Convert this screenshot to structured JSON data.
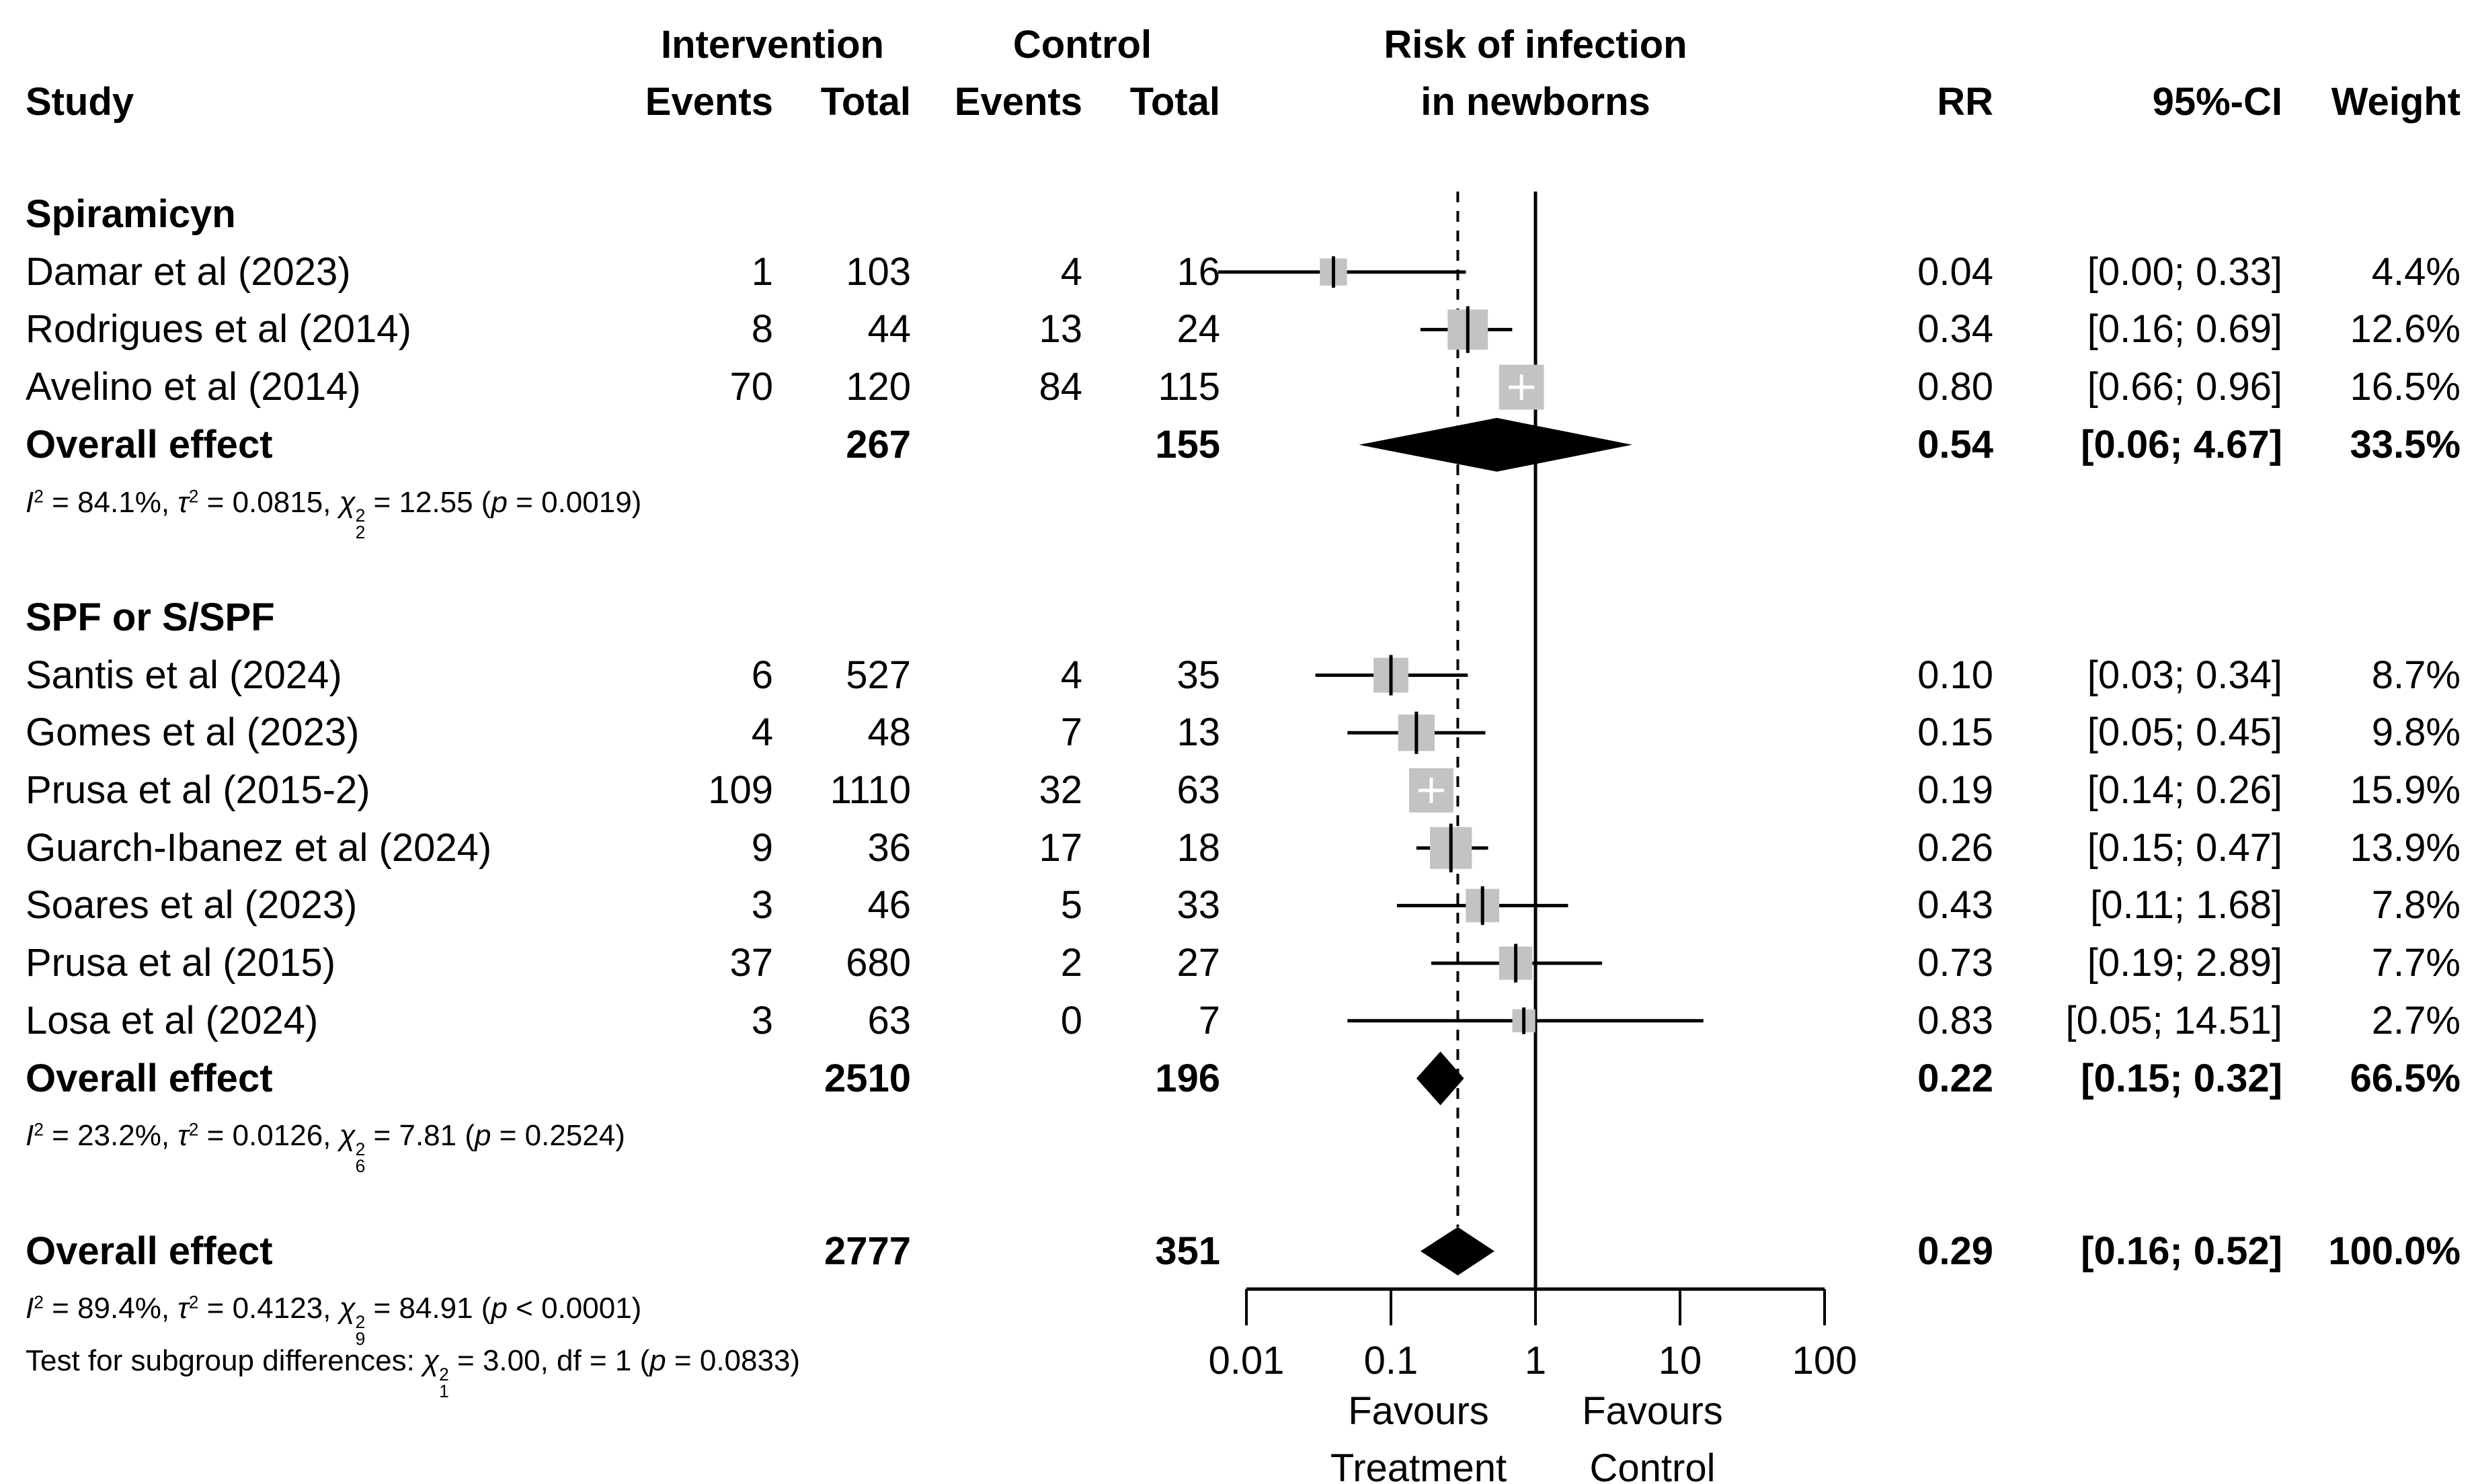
{
  "header": {
    "study": "Study",
    "intervention": "Intervention",
    "control": "Control",
    "events": "Events",
    "total": "Total",
    "plot_title_line1": "Risk of infection",
    "plot_title_line2": "in newborns",
    "rr": "RR",
    "ci": "95%-CI",
    "weight": "Weight"
  },
  "colors": {
    "box_fill": "#c3c3c3",
    "marker": "#000000",
    "background": "#ffffff"
  },
  "chart_data": {
    "type": "forest",
    "effect_measure": "RR",
    "x_axis": {
      "scale": "log",
      "ticks": [
        0.01,
        0.1,
        1,
        10,
        100
      ],
      "tick_labels": [
        "0.01",
        "0.1",
        "1",
        "10",
        "100"
      ],
      "ref_line": 1,
      "summary_line": 0.29,
      "favours_left": [
        "Favours",
        "Treatment"
      ],
      "favours_right": [
        "Favours",
        "Control"
      ]
    },
    "groups": [
      {
        "label": "Spiramicyn",
        "studies": [
          {
            "study": "Damar et al (2023)",
            "events": "1",
            "total": "103",
            "c_events": "4",
            "c_total": "16",
            "rr": 0.04,
            "lo": 0.0,
            "hi": 0.33,
            "rr_text": "0.04",
            "ci_text": "[0.00; 0.33]",
            "weight_text": "4.4%",
            "weight_pct": 4.4
          },
          {
            "study": "Rodrigues et al (2014)",
            "events": "8",
            "total": "44",
            "c_events": "13",
            "c_total": "24",
            "rr": 0.34,
            "lo": 0.16,
            "hi": 0.69,
            "rr_text": "0.34",
            "ci_text": "[0.16; 0.69]",
            "weight_text": "12.6%",
            "weight_pct": 12.6
          },
          {
            "study": "Avelino et al (2014)",
            "events": "70",
            "total": "120",
            "c_events": "84",
            "c_total": "115",
            "rr": 0.8,
            "lo": 0.66,
            "hi": 0.96,
            "rr_text": "0.80",
            "ci_text": "[0.66; 0.96]",
            "weight_text": "16.5%",
            "weight_pct": 16.5
          }
        ],
        "overall": {
          "label": "Overall effect",
          "total": "267",
          "c_total": "155",
          "rr": 0.54,
          "lo": 0.06,
          "hi": 4.67,
          "rr_text": "0.54",
          "ci_text": "[0.06; 4.67]",
          "weight_text": "33.5%"
        },
        "heterogeneity": {
          "i2": "84.1%",
          "tau2": "0.0815",
          "chi2": "12.55",
          "chi_df": "2",
          "p": "= 0.0019"
        }
      },
      {
        "label": "SPF or S/SPF",
        "studies": [
          {
            "study": "Santis et al (2024)",
            "events": "6",
            "total": "527",
            "c_events": "4",
            "c_total": "35",
            "rr": 0.1,
            "lo": 0.03,
            "hi": 0.34,
            "rr_text": "0.10",
            "ci_text": "[0.03; 0.34]",
            "weight_text": "8.7%",
            "weight_pct": 8.7
          },
          {
            "study": "Gomes et al (2023)",
            "events": "4",
            "total": "48",
            "c_events": "7",
            "c_total": "13",
            "rr": 0.15,
            "lo": 0.05,
            "hi": 0.45,
            "rr_text": "0.15",
            "ci_text": "[0.05; 0.45]",
            "weight_text": "9.8%",
            "weight_pct": 9.8
          },
          {
            "study": "Prusa et al (2015-2)",
            "events": "109",
            "total": "1110",
            "c_events": "32",
            "c_total": "63",
            "rr": 0.19,
            "lo": 0.14,
            "hi": 0.26,
            "rr_text": "0.19",
            "ci_text": "[0.14; 0.26]",
            "weight_text": "15.9%",
            "weight_pct": 15.9
          },
          {
            "study": "Guarch-Ibanez et al (2024)",
            "events": "9",
            "total": "36",
            "c_events": "17",
            "c_total": "18",
            "rr": 0.26,
            "lo": 0.15,
            "hi": 0.47,
            "rr_text": "0.26",
            "ci_text": "[0.15; 0.47]",
            "weight_text": "13.9%",
            "weight_pct": 13.9
          },
          {
            "study": "Soares et al (2023)",
            "events": "3",
            "total": "46",
            "c_events": "5",
            "c_total": "33",
            "rr": 0.43,
            "lo": 0.11,
            "hi": 1.68,
            "rr_text": "0.43",
            "ci_text": "[0.11; 1.68]",
            "weight_text": "7.8%",
            "weight_pct": 7.8
          },
          {
            "study": "Prusa et al (2015)",
            "events": "37",
            "total": "680",
            "c_events": "2",
            "c_total": "27",
            "rr": 0.73,
            "lo": 0.19,
            "hi": 2.89,
            "rr_text": "0.73",
            "ci_text": "[0.19; 2.89]",
            "weight_text": "7.7%",
            "weight_pct": 7.7
          },
          {
            "study": "Losa et al (2024)",
            "events": "3",
            "total": "63",
            "c_events": "0",
            "c_total": "7",
            "rr": 0.83,
            "lo": 0.05,
            "hi": 14.51,
            "rr_text": "0.83",
            "ci_text": "[0.05; 14.51]",
            "weight_text": "2.7%",
            "weight_pct": 2.7
          }
        ],
        "overall": {
          "label": "Overall effect",
          "total": "2510",
          "c_total": "196",
          "rr": 0.22,
          "lo": 0.15,
          "hi": 0.32,
          "rr_text": "0.22",
          "ci_text": "[0.15; 0.32]",
          "weight_text": "66.5%"
        },
        "heterogeneity": {
          "i2": "23.2%",
          "tau2": "0.0126",
          "chi2": "7.81",
          "chi_df": "6",
          "p": "= 0.2524"
        }
      }
    ],
    "overall": {
      "label": "Overall effect",
      "total": "2777",
      "c_total": "351",
      "rr": 0.29,
      "lo": 0.16,
      "hi": 0.52,
      "rr_text": "0.29",
      "ci_text": "[0.16; 0.52]",
      "weight_text": "100.0%"
    },
    "overall_heterogeneity": {
      "i2": "89.4%",
      "tau2": "0.4123",
      "chi2": "84.91",
      "chi_df": "9",
      "p": "< 0.0001"
    },
    "subgroup_test": {
      "label": "Test for subgroup differences:",
      "chi2": "3.00",
      "chi_df": "1",
      "df": "1",
      "p": "= 0.0833"
    }
  }
}
